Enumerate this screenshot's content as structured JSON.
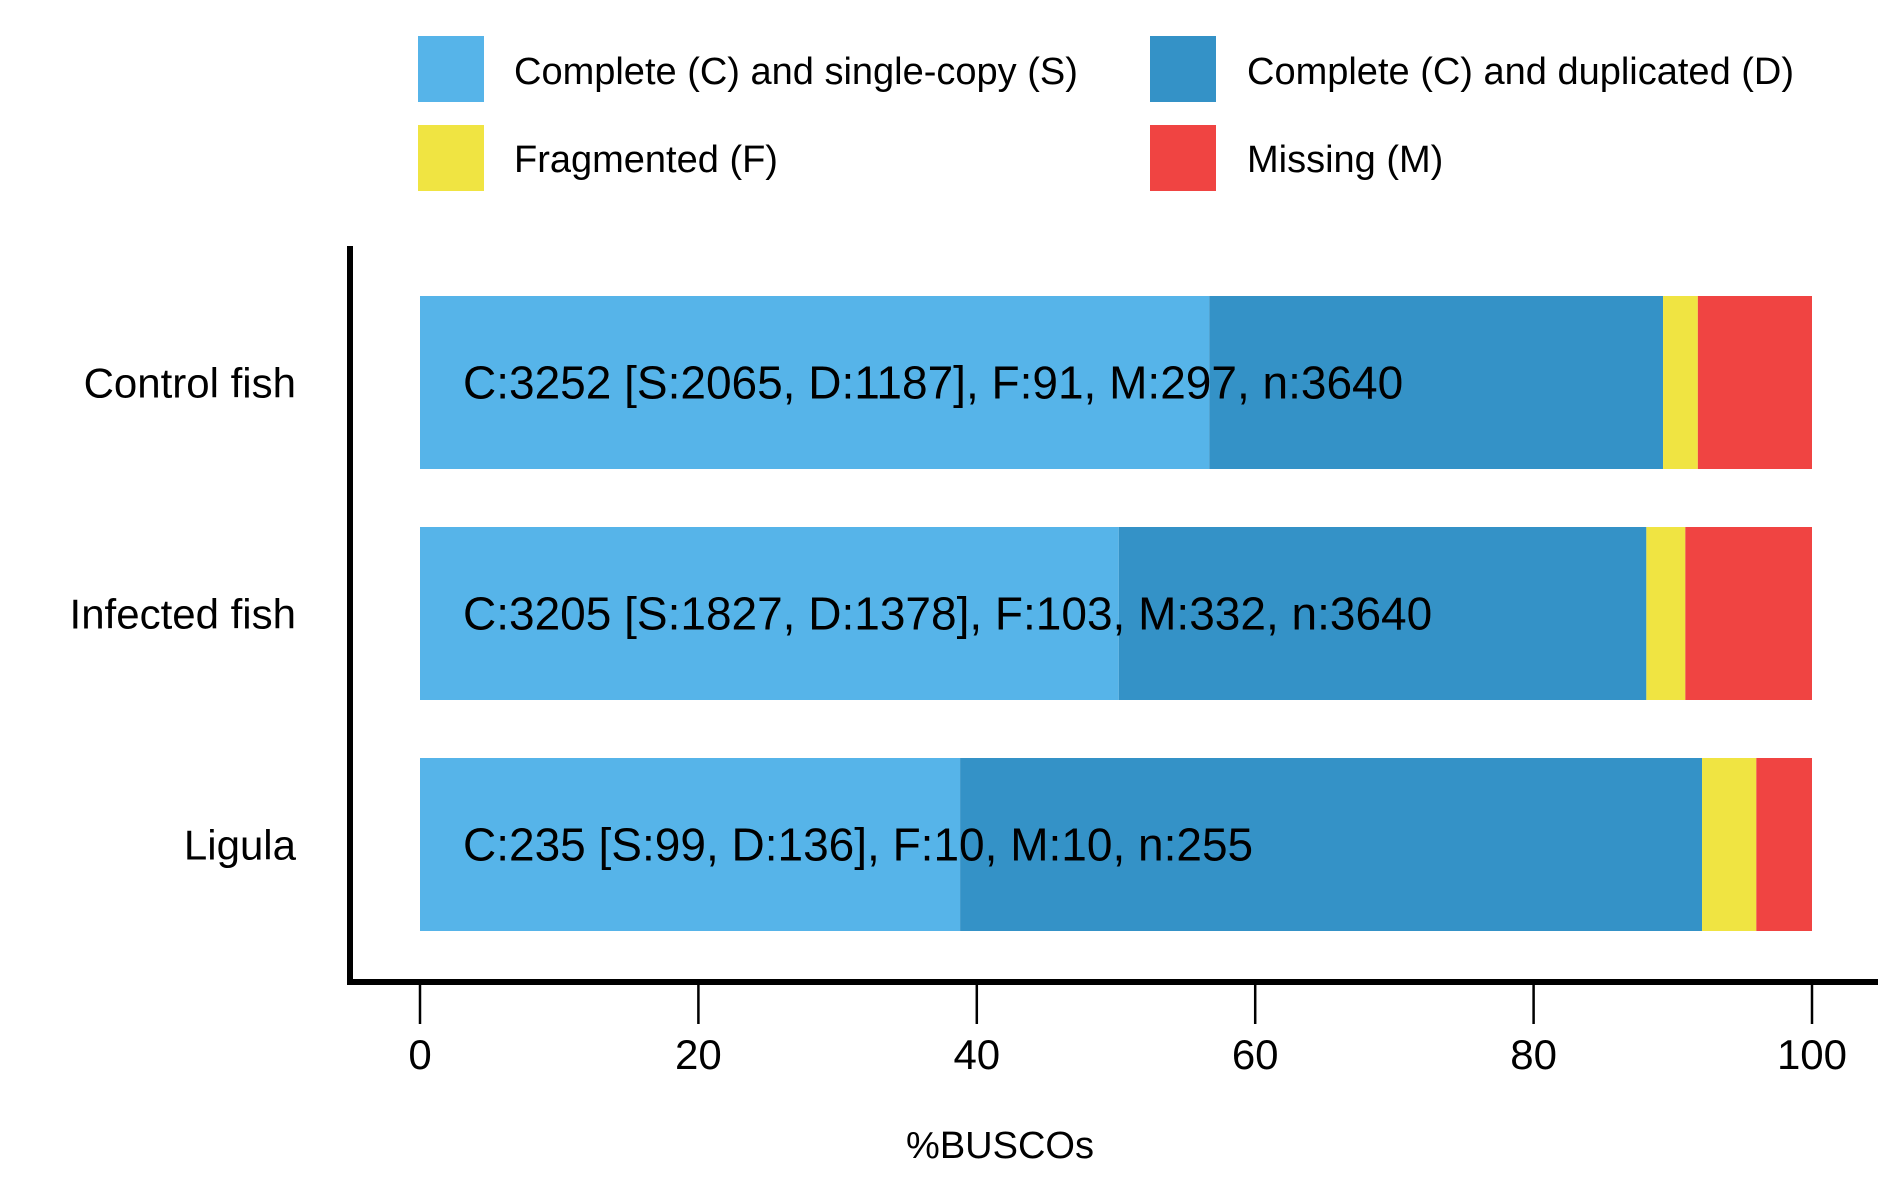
{
  "chart_data": {
    "type": "bar",
    "orientation": "horizontal",
    "stacked": true,
    "categories": [
      "Control fish",
      "Infected fish",
      "Ligula"
    ],
    "series": [
      {
        "name": "Complete (C) and single-copy (S)",
        "color": "#56B4E9",
        "values": [
          56.7,
          50.2,
          38.8
        ]
      },
      {
        "name": "Complete (C) and duplicated (D)",
        "color": "#3492C7",
        "values": [
          32.6,
          37.9,
          53.3
        ]
      },
      {
        "name": "Fragmented (F)",
        "color": "#F0E442",
        "values": [
          2.5,
          2.8,
          3.9
        ]
      },
      {
        "name": "Missing (M)",
        "color": "#F04442",
        "values": [
          8.2,
          9.1,
          4.0
        ]
      }
    ],
    "bar_labels": [
      "C:3252 [S:2065, D:1187], F:91, M:297, n:3640",
      "C:3205 [S:1827, D:1378], F:103, M:332, n:3640",
      "C:235 [S:99, D:136], F:10, M:10, n:255"
    ],
    "xlabel": "%BUSCOs",
    "ylabel": "",
    "title": "",
    "xlim": [
      0,
      100
    ],
    "xticks": [
      0,
      20,
      40,
      60,
      80,
      100
    ],
    "grid": false,
    "legend_position": "top"
  }
}
